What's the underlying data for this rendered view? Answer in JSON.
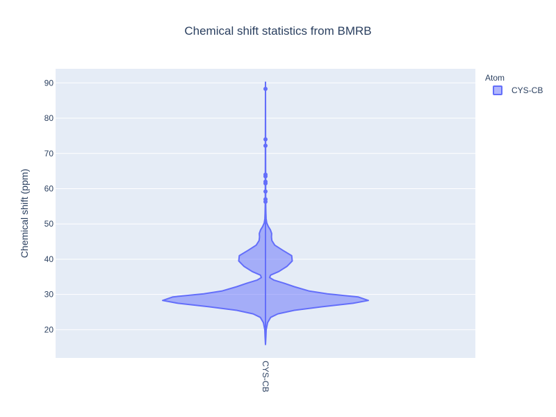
{
  "chart_data": {
    "type": "violin",
    "title": "Chemical shift statistics from BMRB",
    "xlabel": "",
    "ylabel": "Chemical shift (ppm)",
    "ylim": [
      12,
      94
    ],
    "yticks": [
      20,
      30,
      40,
      50,
      60,
      70,
      80,
      90
    ],
    "categories": [
      "CYS-CB"
    ],
    "legend": {
      "title": "Atom",
      "position": "top-right",
      "entries": [
        "CYS-CB"
      ]
    },
    "colors": {
      "line": "#636efa",
      "fill": "#636efa",
      "plot_bg": "#e5ecf6",
      "grid": "#ffffff"
    },
    "series": [
      {
        "name": "CYS-CB",
        "range": [
          15.8,
          90.2
        ],
        "density_profile": [
          [
            15.8,
            0.0
          ],
          [
            18.0,
            0.004
          ],
          [
            20.0,
            0.007
          ],
          [
            22.0,
            0.02
          ],
          [
            23.5,
            0.05
          ],
          [
            24.5,
            0.12
          ],
          [
            25.5,
            0.28
          ],
          [
            26.5,
            0.55
          ],
          [
            27.5,
            0.85
          ],
          [
            28.3,
            1.0
          ],
          [
            29.3,
            0.9
          ],
          [
            30.2,
            0.6
          ],
          [
            31.0,
            0.42
          ],
          [
            32.2,
            0.28
          ],
          [
            33.2,
            0.18
          ],
          [
            34.1,
            0.08
          ],
          [
            34.8,
            0.04
          ],
          [
            35.5,
            0.05
          ],
          [
            36.5,
            0.13
          ],
          [
            38.0,
            0.21
          ],
          [
            39.5,
            0.26
          ],
          [
            41.0,
            0.255
          ],
          [
            42.5,
            0.17
          ],
          [
            44.0,
            0.09
          ],
          [
            45.3,
            0.062
          ],
          [
            46.3,
            0.058
          ],
          [
            47.3,
            0.06
          ],
          [
            48.3,
            0.048
          ],
          [
            49.3,
            0.027
          ],
          [
            50.3,
            0.012
          ],
          [
            51.5,
            0.006
          ],
          [
            53.0,
            0.004
          ],
          [
            56.0,
            0.002
          ],
          [
            90.2,
            0.0
          ]
        ],
        "outliers": [
          88.3,
          74.0,
          72.2,
          64.0,
          63.5,
          62.0,
          61.5,
          59.2,
          57.0,
          56.3
        ]
      }
    ]
  }
}
